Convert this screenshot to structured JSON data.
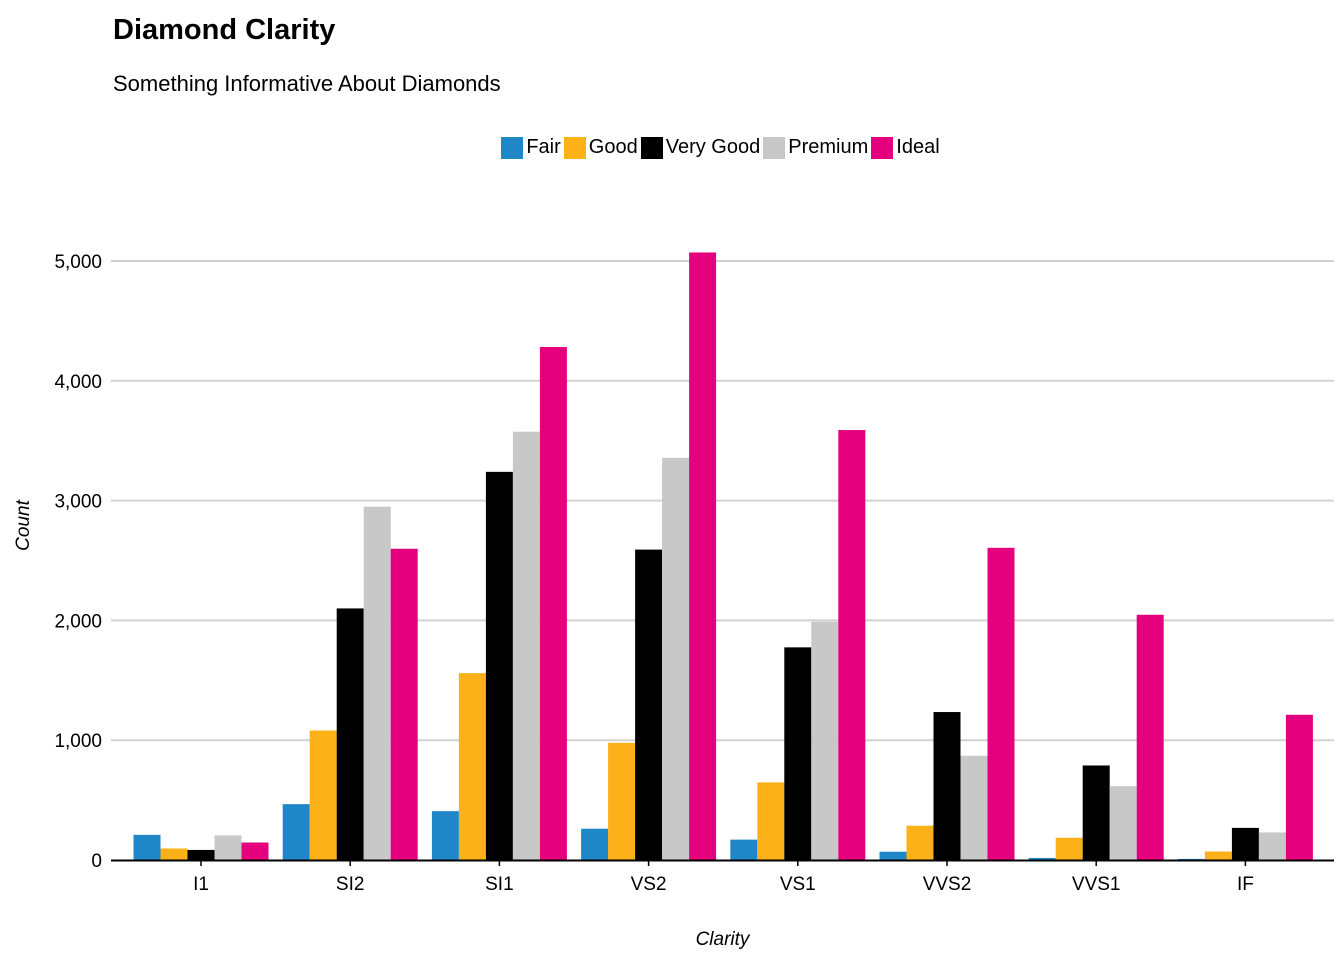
{
  "chart_data": {
    "type": "bar",
    "title": "Diamond Clarity",
    "subtitle": "Something Informative About Diamonds",
    "xlabel": "Clarity",
    "ylabel": "Count",
    "ylim": [
      0,
      5000
    ],
    "yticks": [
      0,
      1000,
      2000,
      3000,
      4000,
      5000
    ],
    "ytick_labels": [
      "0",
      "1,000",
      "2,000",
      "3,000",
      "4,000",
      "5,000"
    ],
    "grid": "horizontal",
    "legend_position": "top-center",
    "categories": [
      "I1",
      "SI2",
      "SI1",
      "VS2",
      "VS1",
      "VVS2",
      "VVS1",
      "IF"
    ],
    "series": [
      {
        "name": "Fair",
        "color": "#1f86c8",
        "values": [
          210,
          466,
          408,
          261,
          170,
          69,
          17,
          9
        ]
      },
      {
        "name": "Good",
        "color": "#fbb117",
        "values": [
          96,
          1081,
          1560,
          978,
          648,
          286,
          186,
          71
        ]
      },
      {
        "name": "Very Good",
        "color": "#000000",
        "values": [
          84,
          2100,
          3240,
          2591,
          1775,
          1235,
          789,
          268
        ]
      },
      {
        "name": "Premium",
        "color": "#c8c8c8",
        "values": [
          205,
          2949,
          3575,
          3357,
          1989,
          870,
          616,
          230
        ]
      },
      {
        "name": "Ideal",
        "color": "#e5007d",
        "values": [
          146,
          2598,
          4282,
          5071,
          3589,
          2606,
          2047,
          1212
        ]
      }
    ]
  }
}
